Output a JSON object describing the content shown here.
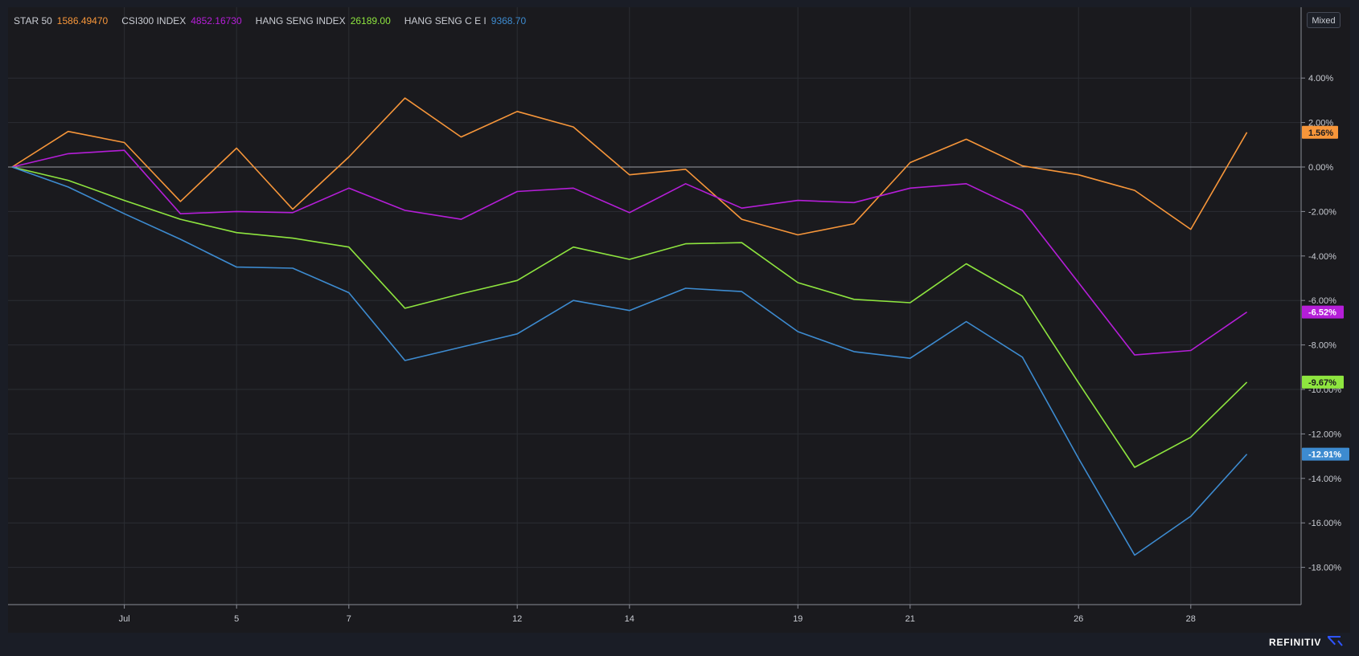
{
  "legend": [
    {
      "name": "STAR 50",
      "value": "1586.49470",
      "color": "#f7963a"
    },
    {
      "name": "CSI300 INDEX",
      "value": "4852.16730",
      "color": "#b51ed8"
    },
    {
      "name": "HANG SENG INDEX",
      "value": "26189.00",
      "color": "#8ee53f"
    },
    {
      "name": "HANG SENG C E I",
      "value": "9368.70",
      "color": "#3d8bd0"
    }
  ],
  "toolbar": {
    "mode_label": "Mixed"
  },
  "brand": {
    "text": "REFINITIV",
    "icon": "refinitiv-logo-icon"
  },
  "chart_data": {
    "type": "line",
    "x_axis": {
      "points": 23,
      "tick_labels": [
        {
          "index": 2,
          "label": "Jul"
        },
        {
          "index": 4,
          "label": "5"
        },
        {
          "index": 6,
          "label": "7"
        },
        {
          "index": 9,
          "label": "12"
        },
        {
          "index": 11,
          "label": "14"
        },
        {
          "index": 14,
          "label": "19"
        },
        {
          "index": 16,
          "label": "21"
        },
        {
          "index": 19,
          "label": "26"
        },
        {
          "index": 21,
          "label": "28"
        }
      ]
    },
    "y_axis": {
      "ylim": [
        -19.6,
        7.2
      ],
      "ticks": [
        4,
        2,
        0,
        -2,
        -4,
        -6,
        -8,
        -10,
        -12,
        -14,
        -16,
        -18
      ],
      "tick_labels": [
        "4.00%",
        "2.00%",
        "0.00%",
        "-2.00%",
        "-4.00%",
        "-6.00%",
        "-8.00%",
        "-10.00%",
        "-12.00%",
        "-14.00%",
        "-16.00%",
        "-18.00%"
      ],
      "position": "right"
    },
    "grid": true,
    "zero_line": true,
    "series": [
      {
        "name": "STAR 50",
        "color": "#f7963a",
        "end_label": "1.56%",
        "end_value": 1.56,
        "values": [
          0,
          1.6,
          1.1,
          -1.55,
          0.85,
          -1.9,
          0.45,
          3.1,
          1.35,
          2.5,
          1.8,
          -0.35,
          -0.1,
          -2.35,
          -3.05,
          -2.55,
          0.2,
          1.25,
          0.05,
          -0.35,
          -1.05,
          -2.8,
          1.56
        ]
      },
      {
        "name": "CSI300 INDEX",
        "color": "#b51ed8",
        "end_label": "-6.52%",
        "end_value": -6.52,
        "values": [
          0,
          0.6,
          0.75,
          -2.1,
          -2.0,
          -2.05,
          -0.95,
          -1.95,
          -2.35,
          -1.1,
          -0.95,
          -2.05,
          -0.75,
          -1.85,
          -1.5,
          -1.6,
          -0.95,
          -0.75,
          -1.95,
          -5.2,
          -8.45,
          -8.25,
          -6.52
        ]
      },
      {
        "name": "HANG SENG INDEX",
        "color": "#8ee53f",
        "end_label": "-9.67%",
        "end_value": -9.67,
        "values": [
          0,
          -0.6,
          -1.5,
          -2.35,
          -2.95,
          -3.2,
          -3.6,
          -6.35,
          -5.7,
          -5.1,
          -3.6,
          -4.15,
          -3.45,
          -3.4,
          -5.2,
          -5.95,
          -6.1,
          -4.35,
          -5.8,
          -9.7,
          -13.5,
          -12.15,
          -9.67
        ]
      },
      {
        "name": "HANG SENG C E I",
        "color": "#3d8bd0",
        "end_label": "-12.91%",
        "end_value": -12.91,
        "values": [
          0,
          -0.9,
          -2.1,
          -3.25,
          -4.5,
          -4.55,
          -5.65,
          -8.7,
          -8.1,
          -7.5,
          -6.0,
          -6.45,
          -5.45,
          -5.6,
          -7.4,
          -8.3,
          -8.6,
          -6.95,
          -8.55,
          -13.1,
          -17.45,
          -15.7,
          -12.91
        ]
      }
    ]
  }
}
